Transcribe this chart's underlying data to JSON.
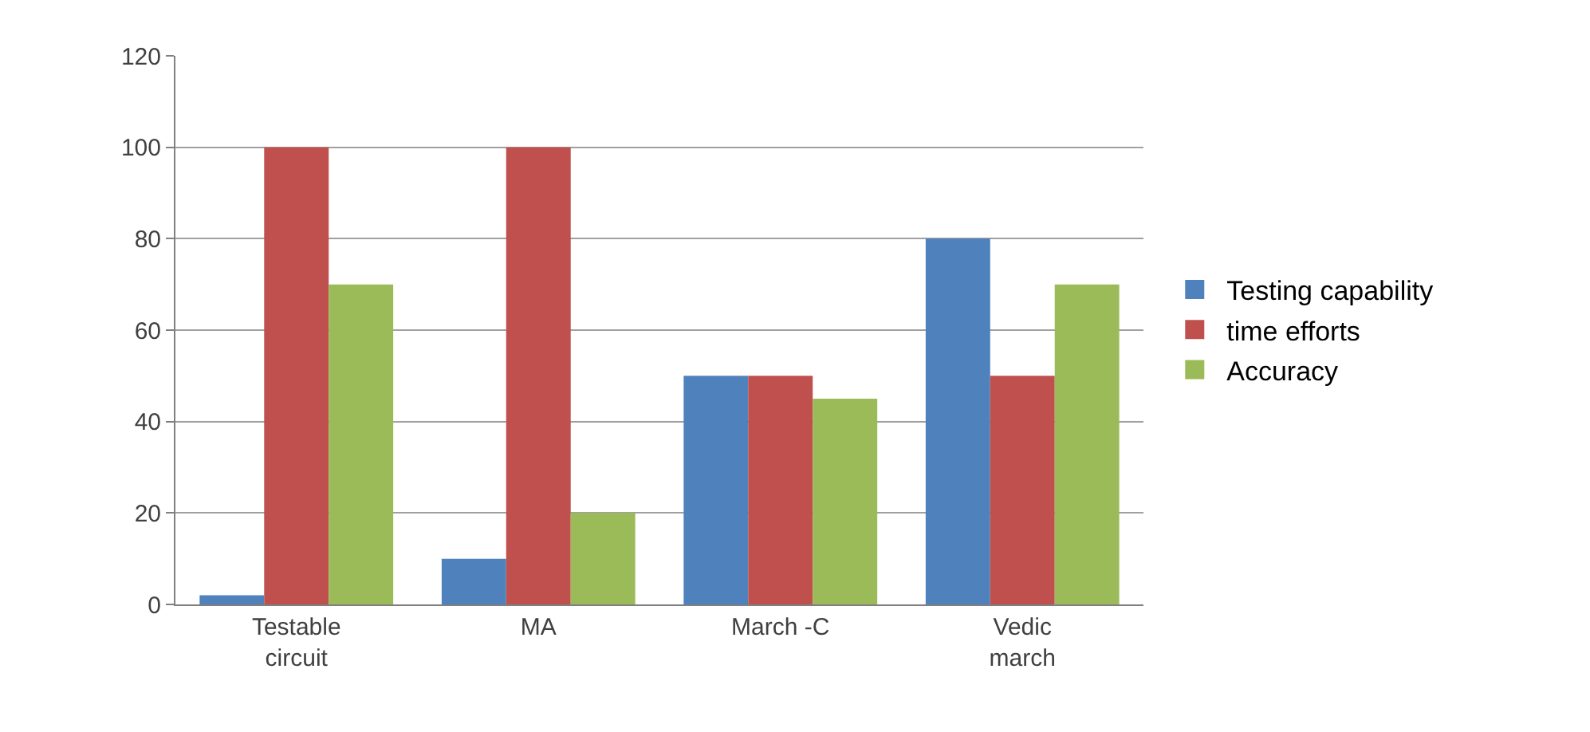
{
  "chart_data": {
    "type": "bar",
    "categories": [
      "Testable\ncircuit",
      "MA",
      "March -C",
      "Vedic\nmarch"
    ],
    "series": [
      {
        "name": "Testing capability",
        "color": "#4f81bd",
        "values": [
          2,
          10,
          50,
          80
        ]
      },
      {
        "name": "time efforts",
        "color": "#c0504d",
        "values": [
          100,
          100,
          50,
          50
        ]
      },
      {
        "name": "Accuracy",
        "color": "#9bbb59",
        "values": [
          70,
          20,
          45,
          70
        ]
      }
    ],
    "ylim": [
      0,
      120
    ],
    "yticks": [
      0,
      20,
      40,
      60,
      80,
      100,
      120
    ],
    "grid": "y",
    "legend": "right"
  }
}
